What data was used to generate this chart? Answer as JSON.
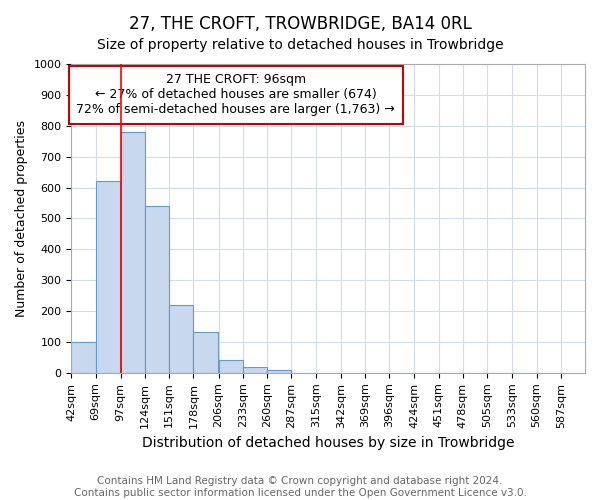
{
  "title": "27, THE CROFT, TROWBRIDGE, BA14 0RL",
  "subtitle": "Size of property relative to detached houses in Trowbridge",
  "xlabel": "Distribution of detached houses by size in Trowbridge",
  "ylabel": "Number of detached properties",
  "bin_edges": [
    42,
    69,
    97,
    124,
    151,
    178,
    206,
    233,
    260,
    287,
    315,
    342,
    369,
    396,
    424,
    451,
    478,
    505,
    533,
    560,
    587
  ],
  "bar_heights": [
    100,
    620,
    780,
    540,
    220,
    133,
    43,
    18,
    10,
    0,
    0,
    0,
    0,
    0,
    0,
    0,
    0,
    0,
    0,
    0
  ],
  "bar_color": "#c8d8ee",
  "bar_edge_color": "#6699cc",
  "red_line_x": 97,
  "ylim": [
    0,
    1000
  ],
  "yticks": [
    0,
    100,
    200,
    300,
    400,
    500,
    600,
    700,
    800,
    900,
    1000
  ],
  "annotation_text": "27 THE CROFT: 96sqm\n← 27% of detached houses are smaller (674)\n72% of semi-detached houses are larger (1,763) →",
  "annotation_box_color": "#ffffff",
  "annotation_box_edge_color": "#cc0000",
  "footer_text": "Contains HM Land Registry data © Crown copyright and database right 2024.\nContains public sector information licensed under the Open Government Licence v3.0.",
  "title_fontsize": 12,
  "subtitle_fontsize": 10,
  "xlabel_fontsize": 10,
  "ylabel_fontsize": 9,
  "tick_fontsize": 8,
  "annotation_fontsize": 9,
  "footer_fontsize": 7.5,
  "background_color": "#ffffff",
  "plot_bg_color": "#ffffff",
  "grid_color": "#d0dce8"
}
